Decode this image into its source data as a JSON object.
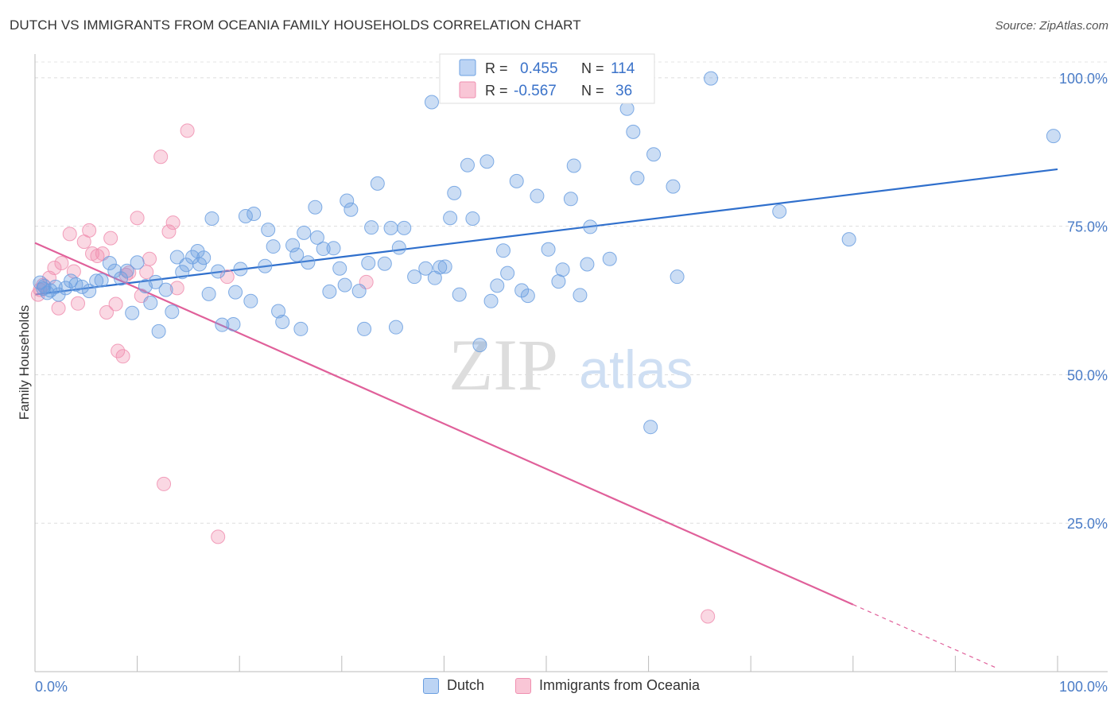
{
  "title": "DUTCH VS IMMIGRANTS FROM OCEANIA FAMILY HOUSEHOLDS CORRELATION CHART",
  "source": "Source: ZipAtlas.com",
  "watermark": {
    "zip": "ZIP",
    "atlas": "atlas"
  },
  "legend_top": {
    "r_label": "R =",
    "n_label": "N =",
    "rows": [
      {
        "r": "0.455",
        "n": "114"
      },
      {
        "r": "-0.567",
        "n": "36"
      }
    ]
  },
  "chart_data": {
    "type": "scatter",
    "ylabel": "Family Households",
    "xlabel": "",
    "xlim": [
      0,
      100
    ],
    "ylim": [
      0,
      104
    ],
    "x_tick_labels": [
      "0.0%",
      "100.0%"
    ],
    "y_ticks": [
      25,
      50,
      75,
      100
    ],
    "y_tick_labels": [
      "25.0%",
      "50.0%",
      "75.0%",
      "100.0%"
    ],
    "grid": true,
    "legend_position": "bottom",
    "colors": {
      "dutch": "#6b9fe0",
      "oceania": "#f08fb0",
      "dutch_line": "#2f6fcc",
      "oceania_line": "#e0609a",
      "tick_label": "#4a7cc7"
    },
    "series": [
      {
        "name": "Dutch",
        "points": [
          [
            0.5,
            65.5
          ],
          [
            0.8,
            64.5
          ],
          [
            1.2,
            63.8
          ],
          [
            1.5,
            64.2
          ],
          [
            2,
            64.8
          ],
          [
            2.3,
            63.5
          ],
          [
            3,
            64.6
          ],
          [
            3.5,
            65.8
          ],
          [
            4,
            65.2
          ],
          [
            4.6,
            64.8
          ],
          [
            5.3,
            64.1
          ],
          [
            6,
            65.8
          ],
          [
            6.5,
            65.9
          ],
          [
            7.3,
            68.8
          ],
          [
            7.8,
            67.5
          ],
          [
            8.4,
            66.2
          ],
          [
            9,
            67.5
          ],
          [
            9.5,
            60.4
          ],
          [
            10,
            68.9
          ],
          [
            10.8,
            64.9
          ],
          [
            11.3,
            62.1
          ],
          [
            11.8,
            65.6
          ],
          [
            12.1,
            57.3
          ],
          [
            12.8,
            64.3
          ],
          [
            13.4,
            60.6
          ],
          [
            13.9,
            69.8
          ],
          [
            14.4,
            67.3
          ],
          [
            14.8,
            68.5
          ],
          [
            15.4,
            69.8
          ],
          [
            15.9,
            70.8
          ],
          [
            16.1,
            68.6
          ],
          [
            16.5,
            69.7
          ],
          [
            17,
            63.6
          ],
          [
            17.3,
            76.3
          ],
          [
            17.9,
            67.4
          ],
          [
            18.3,
            58.4
          ],
          [
            19.4,
            58.5
          ],
          [
            19.6,
            63.9
          ],
          [
            20.1,
            67.8
          ],
          [
            20.6,
            76.7
          ],
          [
            21.1,
            62.4
          ],
          [
            21.4,
            77.1
          ],
          [
            22.5,
            68.3
          ],
          [
            22.8,
            74.4
          ],
          [
            23.3,
            71.6
          ],
          [
            23.8,
            60.7
          ],
          [
            24.2,
            58.9
          ],
          [
            25.2,
            71.8
          ],
          [
            25.6,
            70.2
          ],
          [
            26,
            57.7
          ],
          [
            26.3,
            73.9
          ],
          [
            26.7,
            68.9
          ],
          [
            27.4,
            78.2
          ],
          [
            27.6,
            73.1
          ],
          [
            28.2,
            71.2
          ],
          [
            28.8,
            64
          ],
          [
            29.2,
            71.3
          ],
          [
            29.8,
            67.9
          ],
          [
            30.3,
            65.1
          ],
          [
            30.5,
            79.3
          ],
          [
            30.9,
            77.8
          ],
          [
            31.7,
            64.1
          ],
          [
            32.2,
            57.7
          ],
          [
            32.6,
            68.8
          ],
          [
            32.9,
            74.8
          ],
          [
            33.5,
            82.2
          ],
          [
            34.2,
            68.7
          ],
          [
            34.8,
            74.7
          ],
          [
            35.3,
            58
          ],
          [
            35.6,
            71.4
          ],
          [
            36.1,
            74.7
          ],
          [
            37.1,
            66.5
          ],
          [
            38.2,
            67.9
          ],
          [
            38.8,
            95.9
          ],
          [
            39.1,
            66.3
          ],
          [
            39.6,
            68.1
          ],
          [
            40.1,
            68.2
          ],
          [
            40.6,
            76.4
          ],
          [
            41,
            80.6
          ],
          [
            41.5,
            63.5
          ],
          [
            42.3,
            85.3
          ],
          [
            42.8,
            76.3
          ],
          [
            43.5,
            55
          ],
          [
            44.2,
            85.9
          ],
          [
            44.6,
            62.4
          ],
          [
            45.2,
            65
          ],
          [
            45.8,
            70.9
          ],
          [
            46.2,
            67.1
          ],
          [
            47.1,
            82.6
          ],
          [
            47.6,
            64.2
          ],
          [
            48.2,
            63.3
          ],
          [
            49.1,
            80.1
          ],
          [
            50.2,
            71.1
          ],
          [
            51.2,
            65.7
          ],
          [
            51.6,
            67.7
          ],
          [
            52.4,
            79.6
          ],
          [
            52.7,
            85.2
          ],
          [
            53.3,
            63.4
          ],
          [
            54,
            68.6
          ],
          [
            54.3,
            74.9
          ],
          [
            56.2,
            69.5
          ],
          [
            58.5,
            90.9
          ],
          [
            58.9,
            83.1
          ],
          [
            60.5,
            87.1
          ],
          [
            60.2,
            41.2
          ],
          [
            62.4,
            81.7
          ],
          [
            62.8,
            66.5
          ],
          [
            66.1,
            99.9
          ],
          [
            72.8,
            77.5
          ],
          [
            79.6,
            72.8
          ],
          [
            99.6,
            90.2
          ],
          [
            57.9,
            94.8
          ],
          [
            59.2,
            99.5
          ],
          [
            0.9,
            64.9
          ]
        ]
      },
      {
        "name": "Immigrants from Oceania",
        "points": [
          [
            0.3,
            63.5
          ],
          [
            0.8,
            65.1
          ],
          [
            1.4,
            66.3
          ],
          [
            1.9,
            68
          ],
          [
            2.3,
            61.2
          ],
          [
            2.6,
            68.8
          ],
          [
            3.4,
            73.7
          ],
          [
            3.8,
            67.4
          ],
          [
            4.2,
            62
          ],
          [
            4.8,
            72.4
          ],
          [
            5.3,
            74.3
          ],
          [
            5.6,
            70.4
          ],
          [
            6.1,
            70
          ],
          [
            6.6,
            70.4
          ],
          [
            7,
            60.5
          ],
          [
            7.4,
            73
          ],
          [
            7.9,
            61.9
          ],
          [
            8.1,
            54
          ],
          [
            8.6,
            53.1
          ],
          [
            8.9,
            66.8
          ],
          [
            9.2,
            67.2
          ],
          [
            10,
            76.4
          ],
          [
            10.4,
            63.3
          ],
          [
            10.9,
            67.3
          ],
          [
            11.2,
            69.5
          ],
          [
            12.3,
            86.7
          ],
          [
            12.6,
            31.6
          ],
          [
            13.1,
            74.1
          ],
          [
            13.5,
            75.6
          ],
          [
            13.9,
            64.6
          ],
          [
            14.9,
            91.1
          ],
          [
            17.9,
            22.7
          ],
          [
            18.8,
            66.5
          ],
          [
            32.4,
            65.6
          ],
          [
            65.8,
            9.3
          ],
          [
            0.5,
            64.3
          ]
        ]
      }
    ],
    "trendlines": [
      {
        "series": "Dutch",
        "x": [
          0,
          100
        ],
        "y": [
          63.5,
          84.6
        ]
      },
      {
        "series": "Immigrants from Oceania",
        "x": [
          0,
          80
        ],
        "y": [
          72.2,
          11.3
        ],
        "dashed_extension_x": [
          80,
          94
        ]
      }
    ]
  }
}
